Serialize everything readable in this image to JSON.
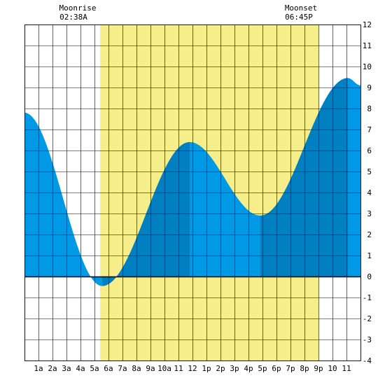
{
  "moonrise": {
    "label": "Moonrise",
    "time": "02:38A"
  },
  "moonset": {
    "label": "Moonset",
    "time": "06:45P"
  },
  "colors": {
    "daylight": "#f5ee8b",
    "tide_light": "#0099e5",
    "tide_dark": "#0080c0",
    "grid": "#000000",
    "background": "#ffffff"
  },
  "chart_data": {
    "type": "area",
    "title": "",
    "xlabel": "",
    "ylabel": "",
    "xlim": [
      0,
      24
    ],
    "ylim": [
      -4,
      12
    ],
    "grid": true,
    "x_tick_labels": [
      "1a",
      "2a",
      "3a",
      "4a",
      "5a",
      "6a",
      "7a",
      "8a",
      "9a",
      "10a",
      "11",
      "12",
      "1p",
      "2p",
      "3p",
      "4p",
      "5p",
      "6p",
      "7p",
      "8p",
      "9p",
      "10",
      "11"
    ],
    "y_tick_labels": [
      "-4",
      "-3",
      "-2",
      "-1",
      "0",
      "1",
      "2",
      "3",
      "4",
      "5",
      "6",
      "7",
      "8",
      "9",
      "10",
      "11",
      "12"
    ],
    "daylight_hours": [
      5.4,
      21.0
    ],
    "tide_extremes": [
      {
        "time": 0.0,
        "height": 7.8
      },
      {
        "time": 5.55,
        "height": -0.45
      },
      {
        "time": 11.8,
        "height": 6.4
      },
      {
        "time": 16.85,
        "height": 2.9
      },
      {
        "time": 23.1,
        "height": 9.45
      },
      {
        "time": 24.0,
        "height": 9.1
      }
    ],
    "dark_shaded_intervals": [
      [
        5.55,
        11.8
      ],
      [
        16.85,
        23.1
      ]
    ]
  }
}
